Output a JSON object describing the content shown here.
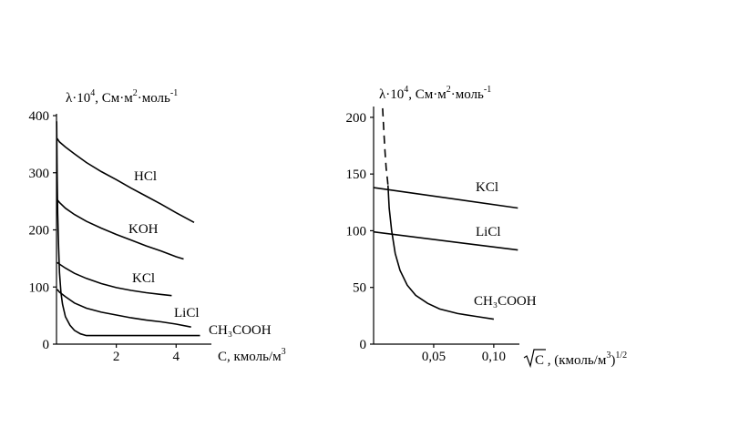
{
  "chart_data": [
    {
      "type": "line",
      "ylabel": "λ·10⁴, См·м²·моль⁻¹",
      "xlabel": "C, кмоль/м³",
      "xlim": [
        0,
        4.8
      ],
      "ylim": [
        0,
        400
      ],
      "x_ticks": [
        "2",
        "4"
      ],
      "y_ticks": [
        "0",
        "100",
        "200",
        "300",
        "400"
      ],
      "grid": false,
      "legend": "none (series labelled on curves)",
      "series": [
        {
          "name": "HCl",
          "x": [
            0.02,
            0.1,
            0.3,
            0.6,
            1.0,
            1.5,
            2.0,
            2.5,
            3.0,
            3.5,
            4.0,
            4.6
          ],
          "y": [
            360,
            354,
            345,
            333,
            318,
            302,
            288,
            273,
            259,
            245,
            230,
            213
          ]
        },
        {
          "name": "KOH",
          "x": [
            0.02,
            0.1,
            0.3,
            0.6,
            1.0,
            1.5,
            2.0,
            2.5,
            3.0,
            3.5,
            4.0,
            4.25
          ],
          "y": [
            253,
            248,
            238,
            227,
            215,
            203,
            192,
            182,
            172,
            163,
            153,
            149
          ]
        },
        {
          "name": "KCl",
          "x": [
            0.02,
            0.1,
            0.3,
            0.6,
            1.0,
            1.5,
            2.0,
            2.5,
            3.0,
            3.5,
            3.85
          ],
          "y": [
            143,
            140,
            133,
            124,
            115,
            106,
            99,
            94,
            90,
            87,
            85
          ]
        },
        {
          "name": "LiCl",
          "x": [
            0.02,
            0.1,
            0.3,
            0.6,
            1.0,
            1.5,
            2.0,
            2.5,
            3.0,
            3.5,
            4.0,
            4.5
          ],
          "y": [
            96,
            91,
            83,
            72,
            63,
            56,
            51,
            46,
            42,
            39,
            35,
            30
          ]
        },
        {
          "name": "CH₃COOH",
          "x": [
            0.005,
            0.02,
            0.04,
            0.07,
            0.1,
            0.15,
            0.2,
            0.3,
            0.45,
            0.6,
            0.8,
            1.0,
            2.0,
            3.0,
            4.0,
            4.8
          ],
          "y": [
            390,
            300,
            230,
            170,
            125,
            90,
            70,
            48,
            33,
            24,
            18,
            15,
            15,
            15,
            15,
            15
          ]
        }
      ],
      "series_labels": [
        "HCl",
        "KOH",
        "KCl",
        "LiCl",
        "CH₃COOH"
      ]
    },
    {
      "type": "line",
      "ylabel": "λ·10⁴, См·м²·моль⁻¹",
      "xlabel": "√C , (кмоль/м³)¹ᐟ²",
      "xlim": [
        0,
        0.125
      ],
      "ylim": [
        0,
        210
      ],
      "x_ticks": [
        "0,05",
        "0,10"
      ],
      "y_ticks": [
        "0",
        "50",
        "100",
        "150",
        "200"
      ],
      "grid": false,
      "legend": "none (series labelled on curves)",
      "series": [
        {
          "name": "KCl",
          "x": [
            0.0,
            0.12
          ],
          "y": [
            138,
            120
          ]
        },
        {
          "name": "LiCl",
          "x": [
            0.0,
            0.12
          ],
          "y": [
            99,
            83
          ]
        },
        {
          "name": "CH₃COOH",
          "x": [
            0.012,
            0.013,
            0.015,
            0.018,
            0.022,
            0.028,
            0.035,
            0.045,
            0.055,
            0.07,
            0.085,
            0.1
          ],
          "y": [
            140,
            120,
            100,
            80,
            65,
            52,
            43,
            36,
            31,
            27,
            24.5,
            22
          ]
        },
        {
          "name": "CH₃COOH (extrapolated, dashed)",
          "x": [
            0.0075,
            0.0085,
            0.0095,
            0.0105,
            0.0115,
            0.012
          ],
          "y": [
            208,
            188,
            170,
            155,
            145,
            140
          ]
        }
      ],
      "series_labels": [
        "KCl",
        "LiCl",
        "CH₃COOH"
      ]
    }
  ]
}
